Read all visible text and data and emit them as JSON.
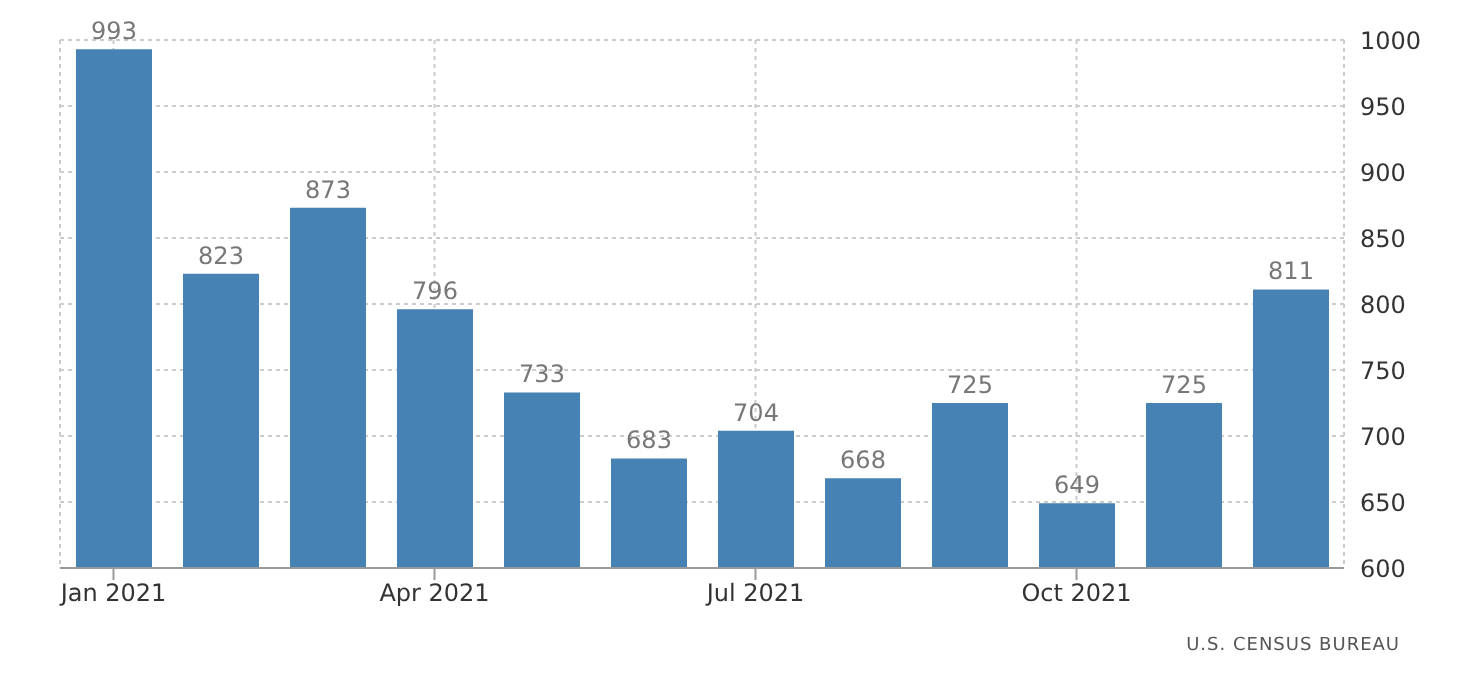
{
  "chart_data": {
    "type": "bar",
    "categories": [
      "Jan 2021",
      null,
      null,
      "Apr 2021",
      null,
      null,
      "Jul 2021",
      null,
      null,
      "Oct 2021",
      null,
      null
    ],
    "values": [
      993,
      823,
      873,
      796,
      733,
      683,
      704,
      668,
      725,
      649,
      725,
      811
    ],
    "color": "#4682b4",
    "ylim": [
      600,
      1000
    ],
    "yticks": [
      600,
      650,
      700,
      750,
      800,
      850,
      900,
      950,
      1000
    ],
    "grid": true,
    "data_labels": true,
    "annotations": [
      "U.S. CENSUS BUREAU"
    ]
  }
}
